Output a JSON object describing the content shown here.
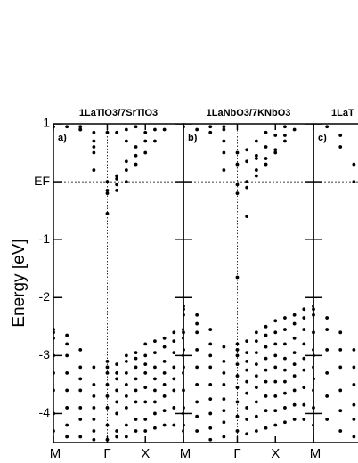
{
  "chart_data": [
    {
      "type": "scatter",
      "title": "1LaTiO3/7SrTiO3",
      "panel_label": "a)",
      "ylabel": "Energy [eV]",
      "color": "#000000",
      "xlim": [
        0,
        3.414
      ],
      "ylim": [
        -4.5,
        1
      ],
      "xticks": [
        {
          "value": 0,
          "label": "M"
        },
        {
          "value": 1.414,
          "label": "Γ"
        },
        {
          "value": 2.414,
          "label": "X"
        }
      ],
      "yticks": [
        1,
        {
          "value": 0,
          "label": "EF"
        },
        -1,
        -2,
        -3,
        -4
      ],
      "x": [
        0,
        0.354,
        0.707,
        1.061,
        1.414,
        1.664,
        1.914,
        2.164,
        2.414,
        2.664,
        2.914,
        3.164,
        3.414
      ],
      "series": [
        {
          "values": [
            null,
            null,
            null,
            0.7,
            -0.55,
            0.1,
            0.7,
            null,
            null,
            null,
            null,
            null,
            null
          ]
        },
        {
          "values": [
            null,
            null,
            0.9,
            0.2,
            -0.2,
            -0.15,
            0.0,
            0.3,
            0.5,
            0.7,
            0.9,
            null,
            null
          ]
        },
        {
          "values": [
            null,
            null,
            null,
            0.5,
            -0.15,
            -0.05,
            0.2,
            0.45,
            0.7,
            0.9,
            null,
            null,
            null
          ]
        },
        {
          "values": [
            null,
            null,
            0.95,
            0.6,
            0.0,
            0.05,
            0.35,
            0.6,
            0.85,
            null,
            null,
            null,
            null
          ]
        },
        {
          "values": [
            0.95,
            0.95,
            0.9,
            0.85,
            0.85,
            0.85,
            0.9,
            0.95,
            null,
            null,
            null,
            null,
            null
          ]
        },
        {
          "values": [
            -2.55,
            -2.65,
            -2.9,
            -3.2,
            -3.1,
            -3.15,
            -3.0,
            -2.95,
            -2.8,
            -2.75,
            -2.7,
            -2.6,
            -2.55
          ]
        },
        {
          "values": [
            -2.6,
            -2.8,
            -3.2,
            -3.5,
            -3.2,
            -3.3,
            -3.1,
            -3.05,
            -3.0,
            -2.95,
            -2.85,
            -2.75,
            -2.6
          ]
        },
        {
          "values": [
            -2.7,
            -3.0,
            -3.4,
            -3.7,
            -3.3,
            -3.4,
            -3.3,
            -3.2,
            -3.15,
            -3.2,
            -3.1,
            -2.95,
            -2.7
          ]
        },
        {
          "values": [
            -3.0,
            -3.3,
            -3.6,
            -3.9,
            -3.5,
            -3.6,
            -3.5,
            -3.4,
            -3.3,
            -3.4,
            -3.3,
            -3.2,
            -3.0
          ]
        },
        {
          "values": [
            -3.3,
            -3.6,
            -3.9,
            -4.1,
            -3.7,
            -3.8,
            -3.7,
            -3.6,
            -3.55,
            -3.6,
            -3.5,
            -3.4,
            -3.3
          ]
        },
        {
          "values": [
            -3.6,
            -3.9,
            -4.1,
            -4.3,
            -3.9,
            -4.0,
            -3.9,
            -3.8,
            -3.8,
            -3.8,
            -3.7,
            -3.6,
            -3.6
          ]
        },
        {
          "values": [
            -4.0,
            -4.2,
            -4.4,
            -4.45,
            -4.2,
            -4.3,
            -4.2,
            -4.1,
            -4.1,
            -4.0,
            -3.95,
            -3.9,
            -4.0
          ]
        },
        {
          "values": [
            -4.3,
            -4.4,
            null,
            null,
            -4.45,
            -4.4,
            -4.4,
            -4.3,
            -4.3,
            -4.25,
            -4.2,
            -4.2,
            -4.3
          ]
        }
      ]
    },
    {
      "type": "scatter",
      "title": "1LaNbO3/7KNbO3",
      "panel_label": "b)",
      "color": "#000000",
      "xlim": [
        0,
        3.414
      ],
      "xticks": [
        {
          "value": 0,
          "label": "M"
        },
        {
          "value": 1.414,
          "label": "Γ"
        },
        {
          "value": 2.414,
          "label": "X"
        }
      ],
      "x": [
        0,
        0.354,
        0.707,
        1.061,
        1.414,
        1.664,
        1.914,
        2.164,
        2.414,
        2.664,
        2.914,
        3.164,
        3.414
      ],
      "series": [
        {
          "values": [
            null,
            null,
            null,
            0.2,
            -1.65,
            -0.6,
            0.4,
            null,
            null,
            null,
            null,
            null,
            null
          ]
        },
        {
          "values": [
            null,
            null,
            0.95,
            0.5,
            -0.2,
            -0.1,
            0.1,
            0.3,
            0.5,
            0.7,
            0.9,
            null,
            null
          ]
        },
        {
          "values": [
            null,
            null,
            null,
            0.7,
            -0.05,
            0.0,
            0.2,
            0.4,
            0.55,
            0.8,
            null,
            null,
            null
          ]
        },
        {
          "values": [
            null,
            null,
            null,
            0.9,
            0.3,
            0.35,
            0.45,
            0.6,
            0.8,
            0.95,
            null,
            null,
            null
          ]
        },
        {
          "values": [
            0.95,
            0.9,
            0.85,
            0.95,
            0.5,
            0.55,
            0.7,
            0.85,
            null,
            null,
            null,
            null,
            null
          ]
        },
        {
          "values": [
            -2.15,
            -2.3,
            -2.55,
            -2.85,
            -2.8,
            -2.75,
            -2.6,
            -2.5,
            -2.4,
            -2.35,
            -2.3,
            -2.2,
            -2.15
          ]
        },
        {
          "values": [
            -2.2,
            -2.45,
            -2.8,
            -3.1,
            -2.9,
            -2.95,
            -2.75,
            -2.65,
            -2.6,
            -2.55,
            -2.45,
            -2.35,
            -2.2
          ]
        },
        {
          "values": [
            -2.3,
            -2.6,
            -3.0,
            -3.3,
            -3.0,
            -3.1,
            -2.95,
            -2.85,
            -2.8,
            -2.8,
            -2.7,
            -2.55,
            -2.3
          ]
        },
        {
          "values": [
            -2.6,
            -2.9,
            -3.2,
            -3.5,
            -3.15,
            -3.25,
            -3.15,
            -3.05,
            -3.0,
            -3.05,
            -2.95,
            -2.8,
            -2.6
          ]
        },
        {
          "values": [
            -2.9,
            -3.2,
            -3.5,
            -3.75,
            -3.35,
            -3.45,
            -3.35,
            -3.25,
            -3.2,
            -3.25,
            -3.15,
            -3.05,
            -2.9
          ]
        },
        {
          "values": [
            -3.2,
            -3.5,
            -3.75,
            -3.95,
            -3.55,
            -3.65,
            -3.55,
            -3.45,
            -3.45,
            -3.45,
            -3.35,
            -3.25,
            -3.2
          ]
        },
        {
          "values": [
            -3.6,
            -3.8,
            -4.0,
            -4.15,
            -3.8,
            -3.9,
            -3.8,
            -3.7,
            -3.7,
            -3.65,
            -3.6,
            -3.55,
            -3.6
          ]
        },
        {
          "values": [
            -3.9,
            -4.05,
            -4.25,
            -4.4,
            -4.05,
            -4.1,
            -4.05,
            -3.95,
            -3.95,
            -3.9,
            -3.85,
            -3.85,
            -3.9
          ]
        },
        {
          "values": [
            -4.2,
            -4.3,
            -4.45,
            null,
            -4.3,
            -4.35,
            -4.3,
            -4.25,
            -4.2,
            -4.15,
            -4.1,
            -4.1,
            -4.2
          ]
        }
      ]
    },
    {
      "type": "scatter",
      "title": "1LaT",
      "panel_label": "c)",
      "color": "#000000",
      "xlim": [
        0,
        3.414
      ],
      "xticks": [
        {
          "value": 0,
          "label": "M"
        }
      ],
      "x": [
        0,
        0.354,
        0.707,
        1.061
      ],
      "series": [
        {
          "values": [
            null,
            null,
            0.8,
            0.3
          ]
        },
        {
          "values": [
            null,
            0.95,
            0.6,
            0.0
          ]
        },
        {
          "values": [
            -2.2,
            -2.35,
            -2.6,
            -2.9
          ]
        },
        {
          "values": [
            -2.3,
            -2.55,
            -2.9,
            -3.2
          ]
        },
        {
          "values": [
            -2.6,
            -2.9,
            -3.2,
            -3.5
          ]
        },
        {
          "values": [
            -3.0,
            -3.3,
            -3.6,
            -3.85
          ]
        },
        {
          "values": [
            -3.4,
            -3.7,
            -3.95,
            -4.1
          ]
        },
        {
          "values": [
            -3.9,
            -4.1,
            -4.3,
            -4.4
          ]
        }
      ]
    }
  ]
}
